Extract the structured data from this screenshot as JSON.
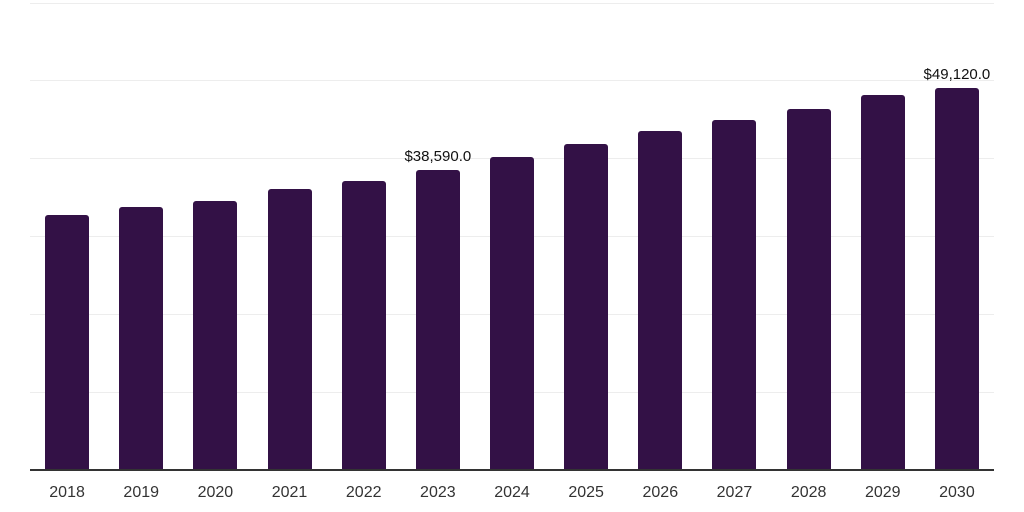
{
  "chart_data": {
    "type": "bar",
    "categories": [
      "2018",
      "2019",
      "2020",
      "2021",
      "2022",
      "2023",
      "2024",
      "2025",
      "2026",
      "2027",
      "2028",
      "2029",
      "2030"
    ],
    "values": [
      32750,
      33850,
      34550,
      36050,
      37100,
      38590,
      40150,
      41850,
      43500,
      44950,
      46350,
      48150,
      49120
    ],
    "annotations": [
      {
        "category": "2023",
        "text": "$38,590.0"
      },
      {
        "category": "2030",
        "text": "$49,120.0"
      }
    ],
    "title": "",
    "xlabel": "",
    "ylabel": "",
    "ylim": [
      0,
      60000
    ],
    "gridline_values": [
      10000,
      20000,
      30000,
      40000,
      50000,
      60000
    ],
    "grid_on": true,
    "legend": "none",
    "colors": {
      "bar": "#331146",
      "axis": "#333333",
      "grid": "#ededed",
      "tick_label": "#333333",
      "annotation": "#111111",
      "background": "#ffffff"
    }
  }
}
